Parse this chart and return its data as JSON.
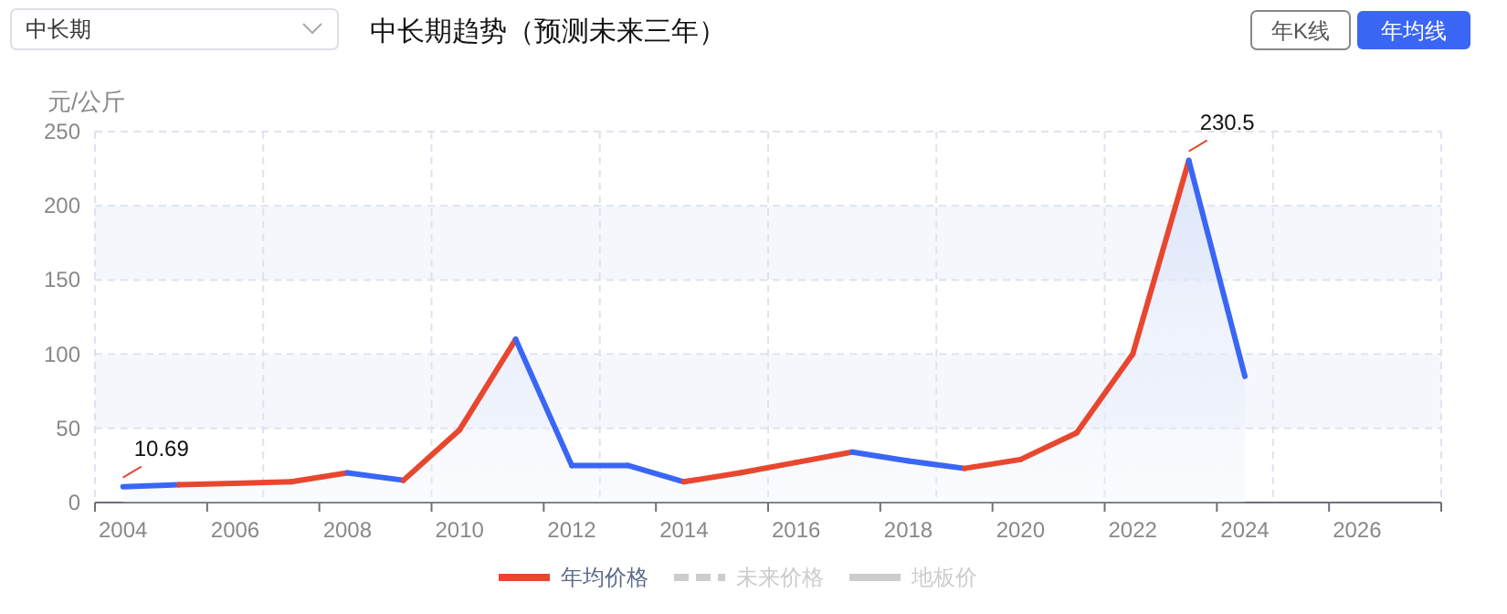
{
  "chart_data": {
    "type": "area",
    "title": "中长期趋势（预测未来三年）",
    "ylabel": "元/公斤",
    "annotations": [
      "中长期",
      "年K线",
      "年均线"
    ],
    "categories": [
      "2004",
      null,
      "2006",
      null,
      "2008",
      null,
      "2010",
      null,
      "2012",
      null,
      "2014",
      null,
      "2016",
      null,
      "2018",
      null,
      "2020",
      null,
      "2022",
      null,
      "2024",
      null,
      "2026",
      null
    ],
    "series": [
      {
        "name": "年均价格",
        "color": "#e8472f",
        "values": [
          10.69,
          12,
          13,
          14,
          20,
          15,
          49,
          110,
          25,
          25,
          14,
          20,
          27,
          34,
          28,
          23,
          29,
          47,
          100,
          230.5,
          85,
          null,
          null,
          null
        ],
        "value_labels": [
          "10.69",
          null,
          null,
          null,
          null,
          null,
          null,
          null,
          null,
          null,
          null,
          null,
          null,
          null,
          null,
          null,
          null,
          null,
          null,
          "230.5",
          null,
          null,
          null,
          null
        ],
        "colors": [
          "#3a66f5",
          "#e8472f",
          "#e8472f",
          "#e8472f",
          "#3a66f5",
          "#e8472f",
          "#e8472f",
          "#3a66f5",
          "#3a66f5",
          "#3a66f5",
          "#e8472f",
          "#e8472f",
          "#e8472f",
          "#3a66f5",
          "#3a66f5",
          "#e8472f",
          "#e8472f",
          "#e8472f",
          "#e8472f",
          "#3a66f5",
          null,
          null,
          null,
          null
        ]
      },
      {
        "name": "未来价格",
        "color": "#cccccc",
        "line_style": "dashed",
        "values": [
          null,
          null,
          null,
          null,
          null,
          null,
          null,
          null,
          null,
          null,
          null,
          null,
          null,
          null,
          null,
          null,
          null,
          null,
          null,
          null,
          null,
          null,
          null,
          null
        ]
      },
      {
        "name": "地板价",
        "color": "#cccccc",
        "values": [
          null,
          null,
          null,
          null,
          null,
          null,
          null,
          null,
          null,
          null,
          null,
          null,
          null,
          null,
          null,
          null,
          null,
          null,
          null,
          null,
          null,
          null,
          null,
          null
        ]
      }
    ],
    "ylim": [
      0,
      250
    ],
    "yticks": [
      0,
      50,
      100,
      150,
      200,
      250
    ],
    "grid": true,
    "legend": "bottom"
  }
}
